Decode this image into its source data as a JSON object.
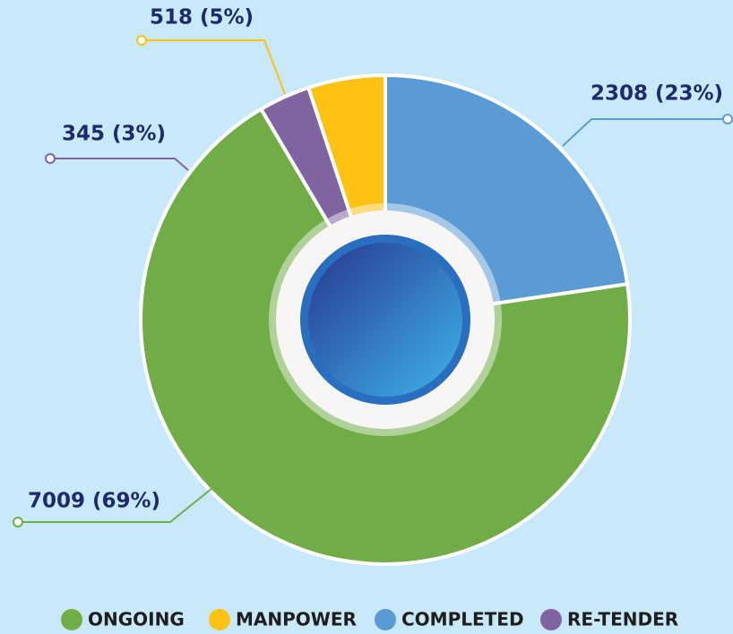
{
  "chart_data": {
    "type": "donut",
    "categories": [
      "ONGOING",
      "MANPOWER",
      "COMPLETED",
      "RE-TENDER"
    ],
    "values": [
      7009,
      518,
      2308,
      345
    ],
    "value_labels": [
      "7009 (69%)",
      "518 (5%)",
      "2308 (23%)",
      "345 (3%)"
    ],
    "colors": [
      "#70ad47",
      "#ffc114",
      "#5b9bd5",
      "#8064a2"
    ],
    "legend": "bottom"
  }
}
